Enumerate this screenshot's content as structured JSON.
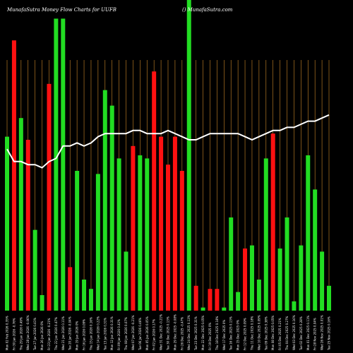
{
  "header": {
    "left": "MunafaSutra  Money Flow  Charts for UUFB",
    "right": "() MunafaSutra.com"
  },
  "colors": {
    "background": "#000000",
    "up_bar": "#22dd22",
    "down_bar": "#ff1111",
    "grid": "#d08a2a",
    "line": "#ffffff"
  },
  "chart_data": {
    "type": "bar",
    "title": "MunafaSutra  Money Flow  Charts for UUFB",
    "ylim": [
      0,
      100
    ],
    "grid": "vertical",
    "categories": [
      "Mon 02 Feb 2026",
      "Fri 30 Jan 2026",
      "Thu 29 Jan 2026",
      "Wed 28 Jan 2026",
      "Tue 27 Jan 2026",
      "Mon 26 Jan 2026",
      "Fri 23 Jan 2026",
      "Thu 22 Jan 2026",
      "Wed 21 Jan 2026",
      "Tue 20 Jan 2026",
      "Mon 19 Jan 2026",
      "Fri 16 Jan 2026",
      "Thu 15 Jan 2026",
      "Wed 14 Jan 2026",
      "Tue 13 Jan 2026",
      "Mon 12 Jan 2026",
      "Fri 09 Jan 2026",
      "Thu 08 Jan 2026",
      "Wed 07 Jan 2026",
      "Tue 06 Jan 2026",
      "Mon 05 Jan 2026",
      "Fri 02 Jan 2026",
      "Wed 31 Dec 2025",
      "Tue 30 Dec 2025",
      "Mon 29 Dec 2025",
      "Fri 26 Dec 2025",
      "Wed 24 Dec 2025",
      "Tue 23 Dec 2025",
      "Mon 22 Dec 2025",
      "Fri 19 Dec 2025",
      "Thu 18 Dec 2025",
      "Wed 17 Dec 2025",
      "Tue 16 Dec 2025",
      "Mon 15 Dec 2025",
      "Fri 12 Dec 2025",
      "Thu 11 Dec 2025",
      "Wed 10 Dec 2025",
      "Tue 09 Dec 2025",
      "Mon 08 Dec 2025",
      "Fri 05 Dec 2025",
      "Thu 04 Dec 2025",
      "Wed 03 Dec 2025",
      "Tue 02 Dec 2025",
      "Mon 01 Dec 2025",
      "Fri 28 Nov 2025",
      "Wed 26 Nov 2025",
      "Tue 25 Nov 2025"
    ],
    "x_labels": [
      "Mon 02 Feb 2026 0.35%",
      "Fri 30 Jan 2026 -0.76%",
      "Thu 29 Jan 2026 0.49%",
      "Wed 28 Jan 2026 -0.06%",
      "Tue 27 Jan 2026 0.41%",
      "Mon 26 Jan 2026 0%",
      "Fri 23 Jan 2026 -0.21%",
      "Thu 22 Jan 2026 0.47%",
      "Wed 21 Jan 2026 0.11%",
      "Tue 20 Jan 2026 -0.04%",
      "Mon 19 Jan 2026 0%",
      "Fri 16 Jan 2026 0.09%",
      "Thu 15 Jan 2026 0.16%",
      "Wed 14 Jan 2026 0.22%",
      "Tue 13 Jan 2026 0.31%",
      "Mon 12 Jan 2026 0.31%",
      "Fri 09 Jan 2026 0.41%",
      "Thu 08 Jan 2026 0.07%",
      "Wed 07 Jan 2026 -0.21%",
      "Tue 06 Jan 2026 0.46%",
      "Mon 05 Jan 2026 0.05%",
      "Fri 02 Jan 2026 0.17%",
      "Wed 31 Dec 2025 -0.21%",
      "Tue 30 Dec 2025 0.13%",
      "Mon 29 Dec 2025 -0.08%",
      "Fri 26 Dec 2025 -0.47%",
      "Wed 24 Dec 2025 0.13%",
      "Tue 23 Dec 2025 0.31%",
      "Mon 22 Dec 2025 0.05%",
      "Fri 19 Dec 2025 0%",
      "Thu 18 Dec 2025 0.18%",
      "Wed 17 Dec 2025 0%",
      "Tue 16 Dec 2025 0.13%",
      "Mon 15 Dec 2025 0%",
      "Fri 12 Dec 2025 0.09%",
      "Thu 11 Dec 2025 0.18%",
      "Wed 10 Dec 2025 0.09%",
      "Tue 09 Dec 2025 0.38%",
      "Mon 08 Dec 2025 0.05%",
      "Fri 05 Dec 2025 0.21%",
      "Thu 04 Dec 2025 0.27%",
      "Wed 03 Dec 2025 0.16%",
      "Tue 02 Dec 2025 0.28%",
      "Mon 01 Dec 2025 0.11%",
      "Fri 28 Nov 2025 0.04%",
      "Wed 26 Nov 2025 0.01%",
      "Tue 25 Nov 2025 0.16%"
    ],
    "bar_values": [
      56,
      87,
      62,
      55,
      26,
      5,
      73,
      94,
      94,
      14,
      45,
      10,
      7,
      44,
      71,
      66,
      49,
      19,
      53,
      50,
      49,
      77,
      56,
      47,
      56,
      45,
      100,
      8,
      1,
      7,
      7,
      1,
      30,
      6,
      20,
      21,
      10,
      49,
      57,
      20,
      30,
      3,
      21,
      50,
      39,
      19,
      8
    ],
    "bar_colors": [
      "up",
      "down",
      "up",
      "down",
      "up",
      "up",
      "down",
      "up",
      "up",
      "down",
      "up",
      "up",
      "up",
      "up",
      "up",
      "up",
      "up",
      "up",
      "down",
      "up",
      "up",
      "down",
      "down",
      "down",
      "down",
      "down",
      "up",
      "down",
      "up",
      "down",
      "down",
      "up",
      "up",
      "up",
      "down",
      "up",
      "up",
      "up",
      "down",
      "up",
      "up",
      "up",
      "up",
      "up",
      "up",
      "up",
      "up"
    ],
    "line_values": [
      52,
      48,
      48,
      47,
      47,
      46,
      48,
      49,
      53,
      53,
      54,
      53,
      54,
      56,
      57,
      57,
      57,
      57,
      58,
      58,
      57,
      57,
      57,
      58,
      57,
      56,
      55,
      55,
      56,
      57,
      57,
      57,
      57,
      57,
      56,
      55,
      56,
      57,
      58,
      58,
      59,
      59,
      60,
      61,
      61,
      62,
      63
    ]
  }
}
